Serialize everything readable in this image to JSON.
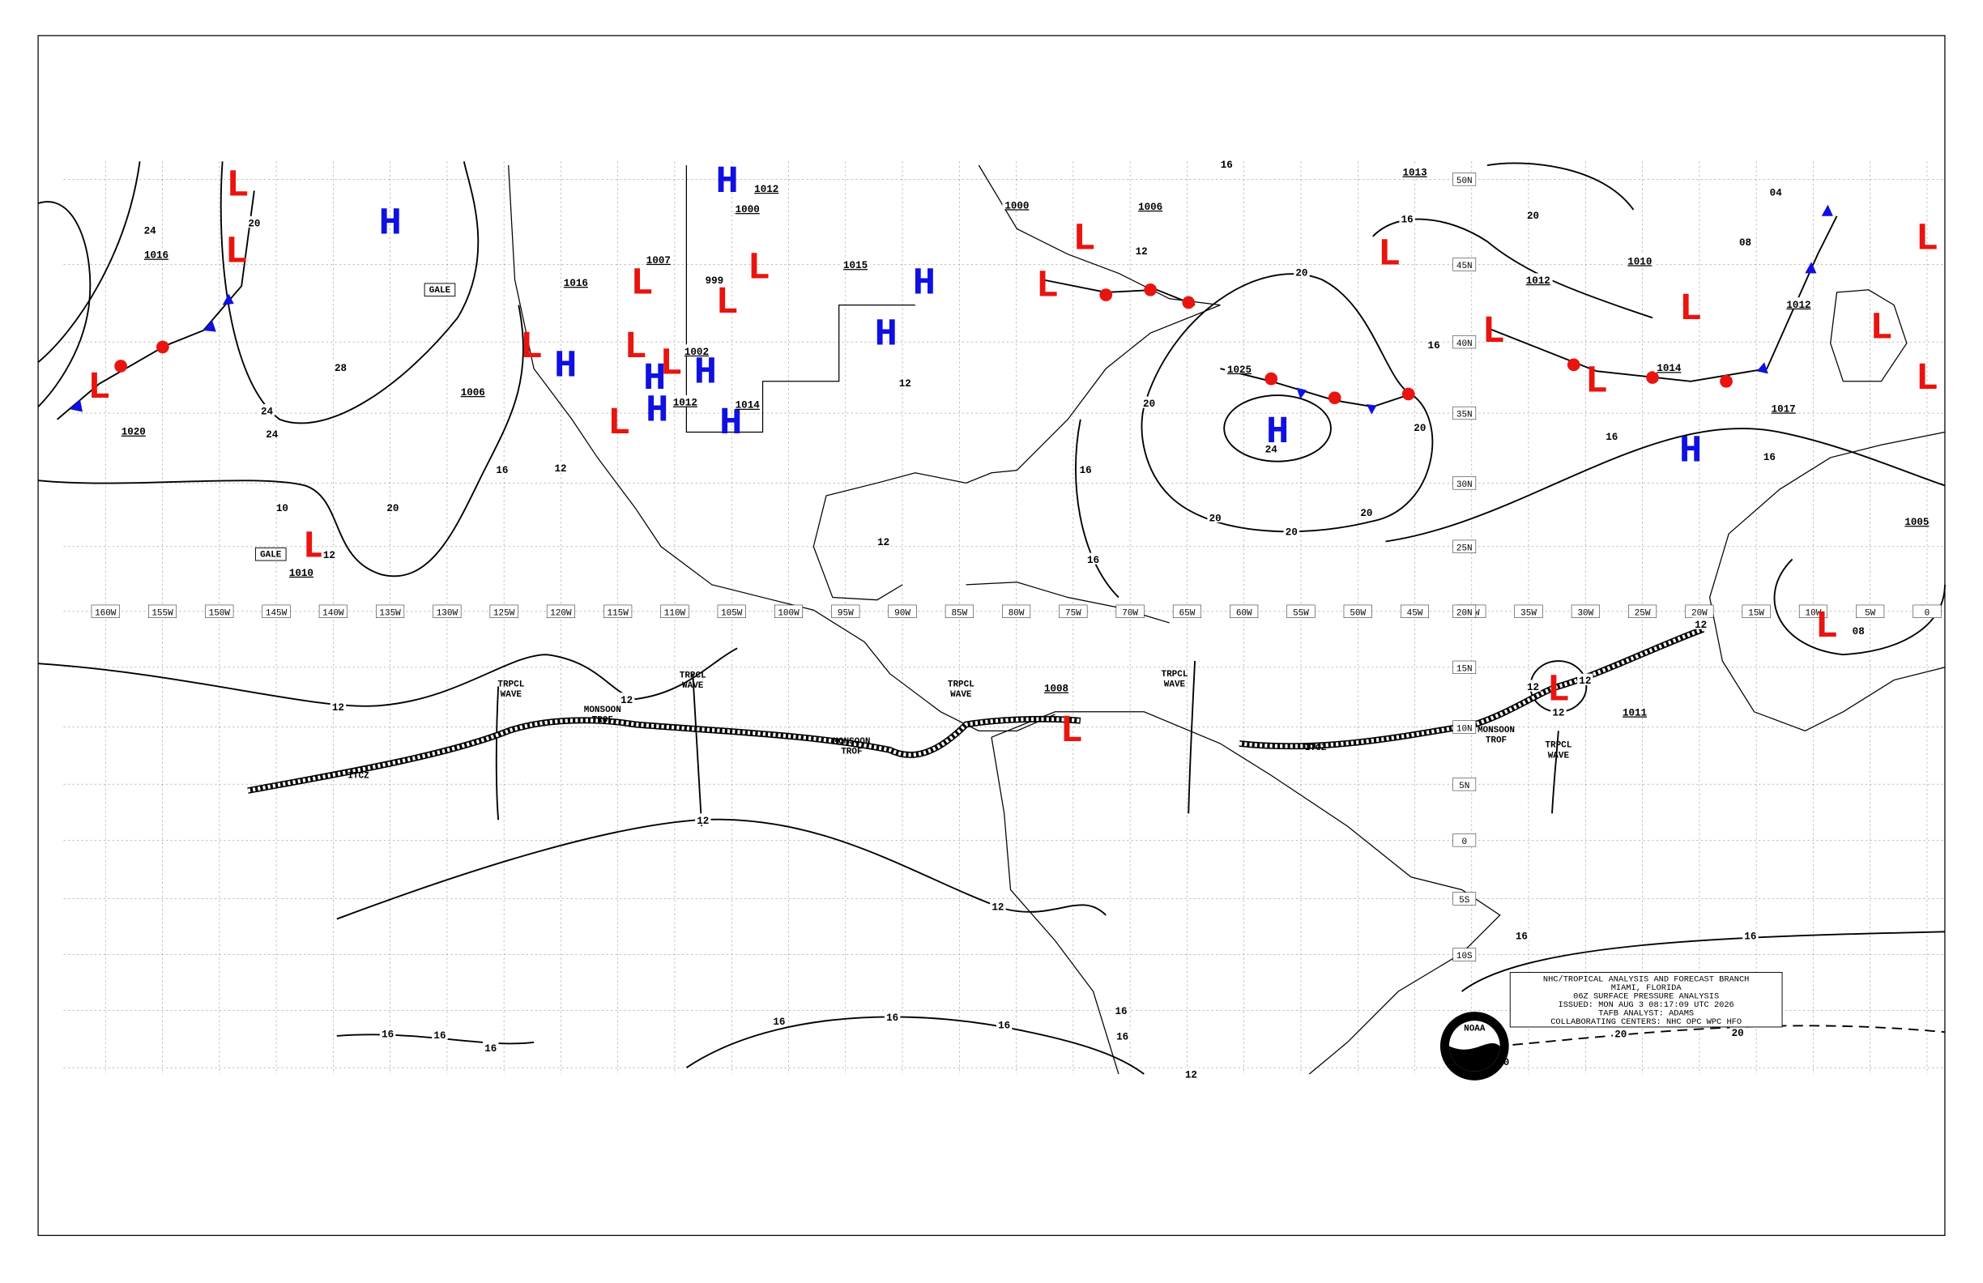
{
  "longitude_labels": [
    "160W",
    "155W",
    "150W",
    "145W",
    "140W",
    "135W",
    "130W",
    "125W",
    "120W",
    "115W",
    "110W",
    "105W",
    "100W",
    "95W",
    "90W",
    "85W",
    "80W",
    "75W",
    "70W",
    "65W",
    "60W",
    "55W",
    "50W",
    "45W",
    "40W",
    "35W",
    "30W",
    "25W",
    "20W",
    "15W",
    "10W",
    "5W",
    "0"
  ],
  "latitude_labels": [
    "50N",
    "45N",
    "40N",
    "35N",
    "30N",
    "25N",
    "20N",
    "15N",
    "10N",
    "5N",
    "0",
    "5S",
    "10S"
  ],
  "pressure_centers": [
    {
      "symbol": "L",
      "color": "#e8140f"
    },
    {
      "symbol": "L",
      "color": "#e8140f"
    },
    {
      "symbol": "L",
      "color": "#e8140f"
    },
    {
      "symbol": "L",
      "color": "#e8140f"
    },
    {
      "symbol": "L",
      "color": "#e8140f"
    },
    {
      "symbol": "L",
      "color": "#e8140f"
    },
    {
      "symbol": "L",
      "color": "#e8140f"
    },
    {
      "symbol": "L",
      "color": "#e8140f"
    },
    {
      "symbol": "L",
      "color": "#e8140f"
    },
    {
      "symbol": "L",
      "color": "#e8140f"
    },
    {
      "symbol": "L",
      "color": "#e8140f"
    },
    {
      "symbol": "L",
      "color": "#e8140f"
    },
    {
      "symbol": "L",
      "color": "#e8140f"
    },
    {
      "symbol": "L",
      "color": "#e8140f"
    },
    {
      "symbol": "L",
      "color": "#e8140f"
    },
    {
      "symbol": "L",
      "color": "#e8140f"
    },
    {
      "symbol": "L",
      "color": "#e8140f"
    },
    {
      "symbol": "L",
      "color": "#e8140f"
    },
    {
      "symbol": "L",
      "color": "#e8140f"
    },
    {
      "symbol": "L",
      "color": "#e8140f"
    },
    {
      "symbol": "L",
      "color": "#e8140f"
    },
    {
      "symbol": "L",
      "color": "#e8140f"
    },
    {
      "symbol": "L",
      "color": "#e8140f"
    },
    {
      "symbol": "H",
      "color": "#1010e0"
    },
    {
      "symbol": "H",
      "color": "#1010e0"
    },
    {
      "symbol": "H",
      "color": "#1010e0"
    },
    {
      "symbol": "H",
      "color": "#1010e0"
    },
    {
      "symbol": "H",
      "color": "#1010e0"
    },
    {
      "symbol": "H",
      "color": "#1010e0"
    },
    {
      "symbol": "H",
      "color": "#1010e0"
    },
    {
      "symbol": "H",
      "color": "#1010e0"
    },
    {
      "symbol": "H",
      "color": "#1010e0"
    },
    {
      "symbol": "H",
      "color": "#1010e0"
    },
    {
      "symbol": "H",
      "color": "#1010e0"
    }
  ],
  "isobar_labels": [
    "1016",
    "24",
    "20",
    "1020",
    "28",
    "24",
    "24",
    "1006",
    "16",
    "12",
    "20",
    "10",
    "12",
    "1010",
    "1016",
    "1007",
    "1012",
    "1000",
    "999",
    "1002",
    "1012",
    "1014",
    "1015",
    "1000",
    "1006",
    "12",
    "16",
    "1013",
    "16",
    "20",
    "1012",
    "1010",
    "1012",
    "08",
    "04",
    "20",
    "1025",
    "16",
    "1014",
    "1017",
    "16",
    "16",
    "20",
    "24",
    "20",
    "20",
    "20",
    "20",
    "16",
    "12",
    "16",
    "12",
    "1005",
    "08",
    "1008",
    "12",
    "12",
    "12",
    "12",
    "1011",
    "12",
    "12",
    "12",
    "12",
    "16",
    "16",
    "16",
    "16",
    "16",
    "16",
    "16",
    "16",
    "16",
    "16",
    "12",
    "20",
    "20",
    "0"
  ],
  "feature_labels": [
    {
      "lines": [
        "GALE"
      ]
    },
    {
      "lines": [
        "GALE"
      ]
    },
    {
      "lines": [
        "TRPCL",
        "WAVE"
      ]
    },
    {
      "lines": [
        "TRPCL",
        "WAVE"
      ]
    },
    {
      "lines": [
        "TRPCL",
        "WAVE"
      ]
    },
    {
      "lines": [
        "TRPCL",
        "WAVE"
      ]
    },
    {
      "lines": [
        "TRPCL",
        "WAVE"
      ]
    },
    {
      "lines": [
        "MONSOON",
        "TROF"
      ]
    },
    {
      "lines": [
        "MONSOON",
        "TROF"
      ]
    },
    {
      "lines": [
        "MONSOON",
        "TROF"
      ]
    },
    {
      "lines": [
        "ITCZ"
      ]
    },
    {
      "lines": [
        "ITCZ"
      ]
    }
  ],
  "info_box": {
    "lines": [
      "NHC/TROPICAL ANALYSIS AND FORECAST BRANCH",
      "MIAMI, FLORIDA",
      "06Z SURFACE PRESSURE ANALYSIS",
      "ISSUED: MON AUG 3 08:17:09 UTC 2026",
      "TAFB ANALYST: ADAMS",
      "COLLABORATING CENTERS: NHC OPC WPC HFO"
    ]
  },
  "logo": "NOAA"
}
